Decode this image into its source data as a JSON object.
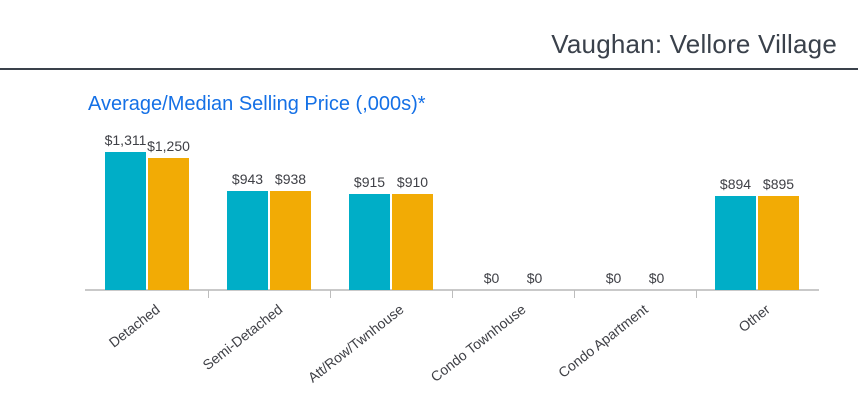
{
  "header": {
    "title": "Vaughan: Vellore Village"
  },
  "chart_data": {
    "type": "bar",
    "title": "Average/Median Selling Price (,000s)*",
    "categories": [
      "Detached",
      "Semi-Detached",
      "Att/Row/Twnhouse",
      "Condo Townhouse",
      "Condo Apartment",
      "Other"
    ],
    "series": [
      {
        "name": "Average",
        "color": "#00AEC7",
        "values": [
          1311,
          943,
          915,
          0,
          0,
          894
        ],
        "labels": [
          "$1,311",
          "$943",
          "$915",
          "$0",
          "$0",
          "$894"
        ]
      },
      {
        "name": "Median",
        "color": "#F2AB05",
        "values": [
          1250,
          938,
          910,
          0,
          0,
          895
        ],
        "labels": [
          "$1,250",
          "$938",
          "$910",
          "$0",
          "$0",
          "$895"
        ]
      }
    ],
    "xlabel": "",
    "ylabel": "",
    "ylim": [
      0,
      1400
    ],
    "grid": false,
    "legend": "none",
    "data_labels": true
  },
  "colors": {
    "average_bar": "#00AEC7",
    "median_bar": "#F2AB05",
    "chart_title": "#1470E6",
    "header_text": "#3A414B",
    "axis_line": "#C9C9C9",
    "data_label": "#3F4046"
  }
}
